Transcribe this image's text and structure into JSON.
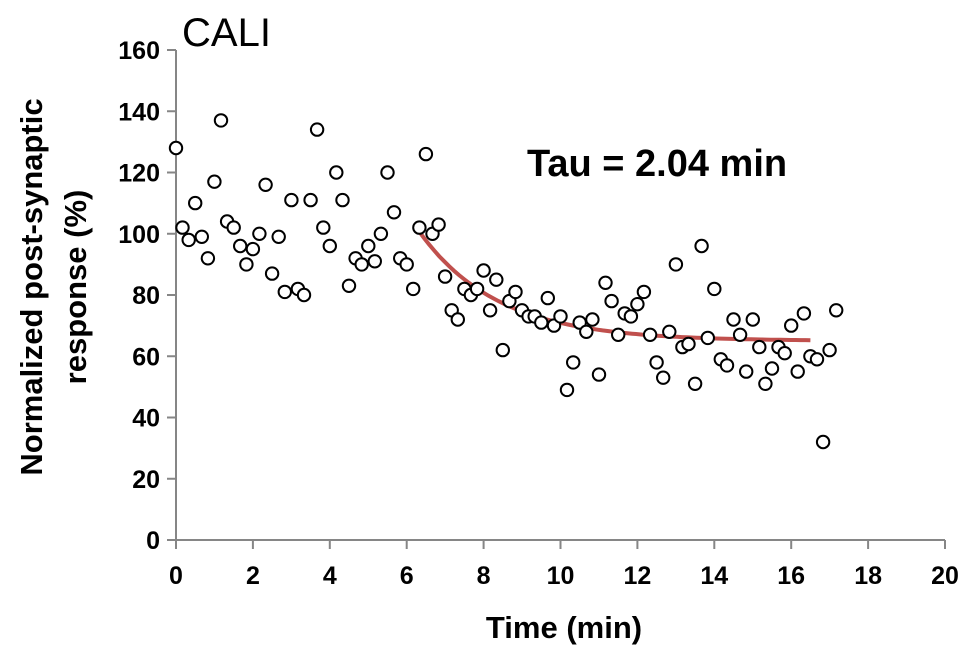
{
  "chart_data": {
    "type": "scatter",
    "title": "CALI",
    "xlabel": "Time (min)",
    "ylabel_lines": [
      "Normalized post-synaptic",
      "response (%)"
    ],
    "xlim": [
      0,
      20
    ],
    "ylim": [
      0,
      160
    ],
    "x_ticks": [
      0,
      2,
      4,
      6,
      8,
      10,
      12,
      14,
      16,
      18,
      20
    ],
    "y_ticks": [
      0,
      20,
      40,
      60,
      80,
      100,
      120,
      140,
      160
    ],
    "grid": false,
    "legend": "none",
    "annotation": "Tau = 2.04 min",
    "colors": {
      "points_fill": "#ffffff",
      "points_stroke": "#000000",
      "fit": "#c0504d",
      "axis": "#868686"
    },
    "series": [
      {
        "points": [
          [
            0.0,
            128
          ],
          [
            0.17,
            102
          ],
          [
            0.33,
            98
          ],
          [
            0.5,
            110
          ],
          [
            0.67,
            99
          ],
          [
            0.83,
            92
          ],
          [
            1.0,
            117
          ],
          [
            1.17,
            137
          ],
          [
            1.33,
            104
          ],
          [
            1.5,
            102
          ],
          [
            1.67,
            96
          ],
          [
            1.83,
            90
          ],
          [
            2.0,
            95
          ],
          [
            2.17,
            100
          ],
          [
            2.33,
            116
          ],
          [
            2.5,
            87
          ],
          [
            2.67,
            99
          ],
          [
            2.83,
            81
          ],
          [
            3.0,
            111
          ],
          [
            3.17,
            82
          ],
          [
            3.33,
            80
          ],
          [
            3.5,
            111
          ],
          [
            3.67,
            134
          ],
          [
            3.83,
            102
          ],
          [
            4.0,
            96
          ],
          [
            4.17,
            120
          ],
          [
            4.33,
            111
          ],
          [
            4.5,
            83
          ],
          [
            4.67,
            92
          ],
          [
            4.83,
            90
          ],
          [
            5.0,
            96
          ],
          [
            5.17,
            91
          ],
          [
            5.33,
            100
          ],
          [
            5.5,
            120
          ],
          [
            5.67,
            107
          ],
          [
            5.83,
            92
          ],
          [
            6.0,
            90
          ],
          [
            6.17,
            82
          ],
          [
            6.33,
            102
          ],
          [
            6.5,
            126
          ],
          [
            6.67,
            100
          ],
          [
            6.83,
            103
          ],
          [
            7.0,
            86
          ],
          [
            7.17,
            75
          ],
          [
            7.33,
            72
          ],
          [
            7.5,
            82
          ],
          [
            7.67,
            80
          ],
          [
            7.83,
            82
          ],
          [
            8.0,
            88
          ],
          [
            8.17,
            75
          ],
          [
            8.33,
            85
          ],
          [
            8.5,
            62
          ],
          [
            8.67,
            78
          ],
          [
            8.83,
            81
          ],
          [
            9.0,
            75
          ],
          [
            9.17,
            73
          ],
          [
            9.33,
            73
          ],
          [
            9.5,
            71
          ],
          [
            9.67,
            79
          ],
          [
            9.83,
            70
          ],
          [
            10.0,
            73
          ],
          [
            10.17,
            49
          ],
          [
            10.33,
            58
          ],
          [
            10.5,
            71
          ],
          [
            10.67,
            68
          ],
          [
            10.83,
            72
          ],
          [
            11.0,
            54
          ],
          [
            11.17,
            84
          ],
          [
            11.33,
            78
          ],
          [
            11.5,
            67
          ],
          [
            11.67,
            74
          ],
          [
            11.83,
            73
          ],
          [
            12.0,
            77
          ],
          [
            12.17,
            81
          ],
          [
            12.33,
            67
          ],
          [
            12.5,
            58
          ],
          [
            12.67,
            53
          ],
          [
            12.83,
            68
          ],
          [
            13.0,
            90
          ],
          [
            13.17,
            63
          ],
          [
            13.33,
            64
          ],
          [
            13.5,
            51
          ],
          [
            13.67,
            96
          ],
          [
            13.83,
            66
          ],
          [
            14.0,
            82
          ],
          [
            14.17,
            59
          ],
          [
            14.33,
            57
          ],
          [
            14.5,
            72
          ],
          [
            14.67,
            67
          ],
          [
            14.83,
            55
          ],
          [
            15.0,
            72
          ],
          [
            15.17,
            63
          ],
          [
            15.33,
            51
          ],
          [
            15.5,
            56
          ],
          [
            15.67,
            63
          ],
          [
            15.83,
            61
          ],
          [
            16.0,
            70
          ],
          [
            16.17,
            55
          ],
          [
            16.33,
            74
          ],
          [
            16.5,
            60
          ],
          [
            16.67,
            59
          ],
          [
            16.83,
            32
          ],
          [
            17.0,
            62
          ],
          [
            17.17,
            75
          ]
        ]
      }
    ],
    "fit": {
      "tau_min": 2.04,
      "x_start": 6.2,
      "x_end": 16.5,
      "y_plateau": 65,
      "y_start": 103
    }
  }
}
